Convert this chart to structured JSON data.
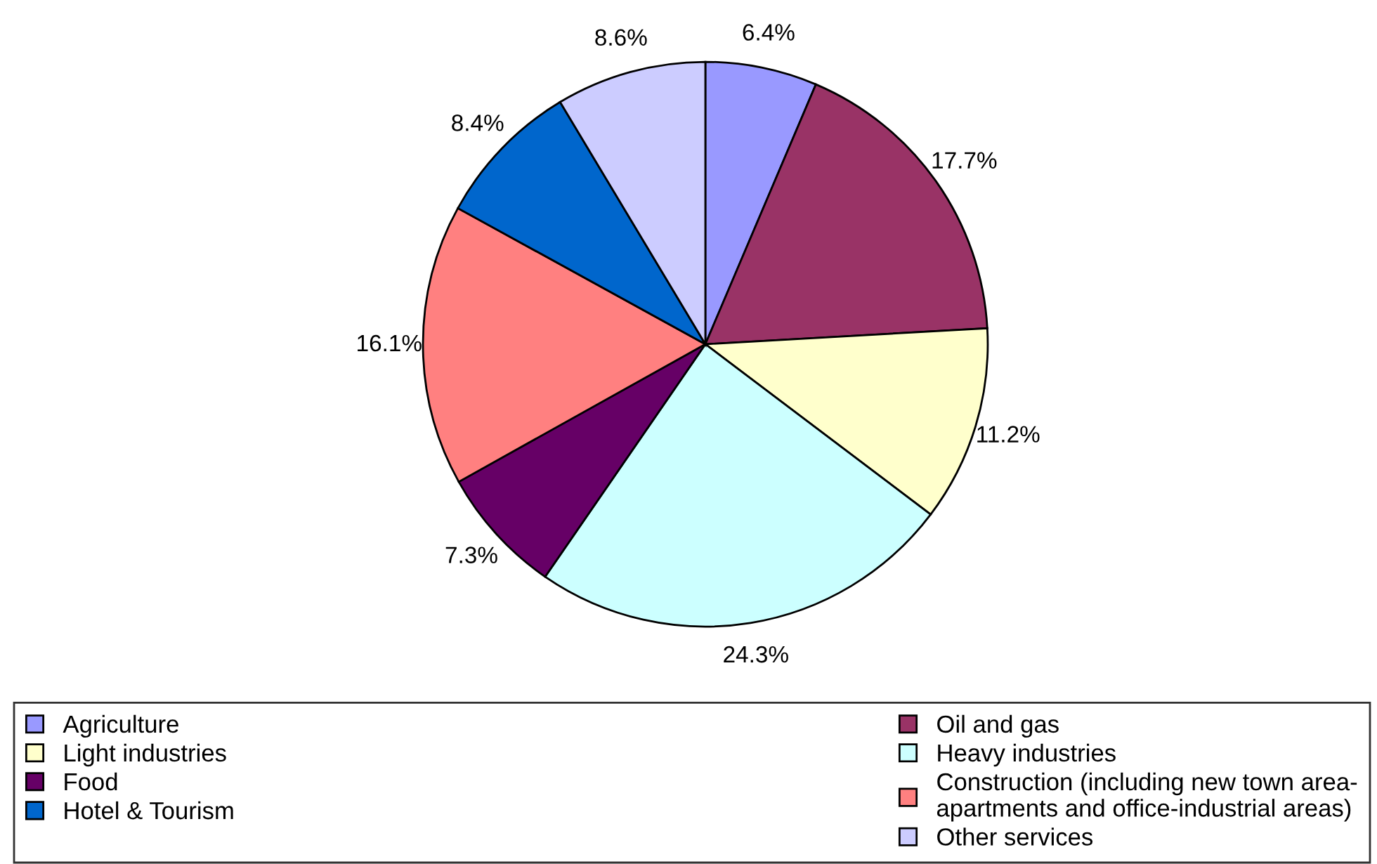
{
  "chart_data": {
    "type": "pie",
    "categories": [
      "Agriculture",
      "Oil and gas",
      "Light industries",
      "Heavy industries",
      "Food",
      "Construction (including new town area-\napartments and office-industrial areas)",
      "Hotel & Tourism",
      "Other services"
    ],
    "values": [
      6.4,
      17.7,
      11.2,
      24.3,
      7.3,
      16.1,
      8.4,
      8.6
    ],
    "value_labels": [
      "6.4%",
      "17.7%",
      "11.2%",
      "24.3%",
      "7.3%",
      "16.1%",
      "8.4%",
      "8.6%"
    ],
    "colors": [
      "#9999ff",
      "#993366",
      "#ffffcc",
      "#ccffff",
      "#660066",
      "#ff8080",
      "#0066cc",
      "#ccccff"
    ],
    "legend": "bottom"
  }
}
